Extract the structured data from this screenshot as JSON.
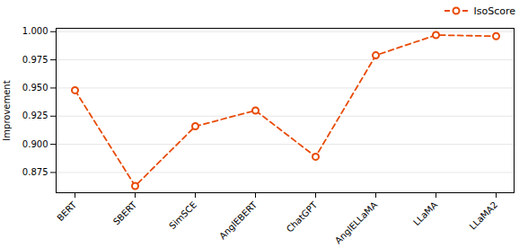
{
  "chart_data": {
    "type": "line",
    "categories": [
      "BERT",
      "SBERT",
      "SimSCE",
      "AnglEBERT",
      "ChatGPT",
      "AnglELLaMA",
      "LLaMA",
      "LLaMA2"
    ],
    "series": [
      {
        "name": "IsoScore",
        "color": "#E84A05",
        "marker": "circle",
        "line_style": "dashed",
        "values": [
          0.948,
          0.863,
          0.916,
          0.93,
          0.889,
          0.979,
          0.997,
          0.996
        ]
      }
    ],
    "ylabel": "Improvement",
    "ylim": [
      0.857,
      1.003
    ],
    "yticks": [
      0.875,
      {
        "value": 0.9,
        "label": "0.900"
      },
      {
        "value": 0.925,
        "label": "0.925"
      },
      {
        "value": 0.95,
        "label": "0.950"
      },
      0.975,
      {
        "value": 1.0,
        "label": "1.000"
      }
    ],
    "grid": true,
    "legend": "upper right"
  }
}
